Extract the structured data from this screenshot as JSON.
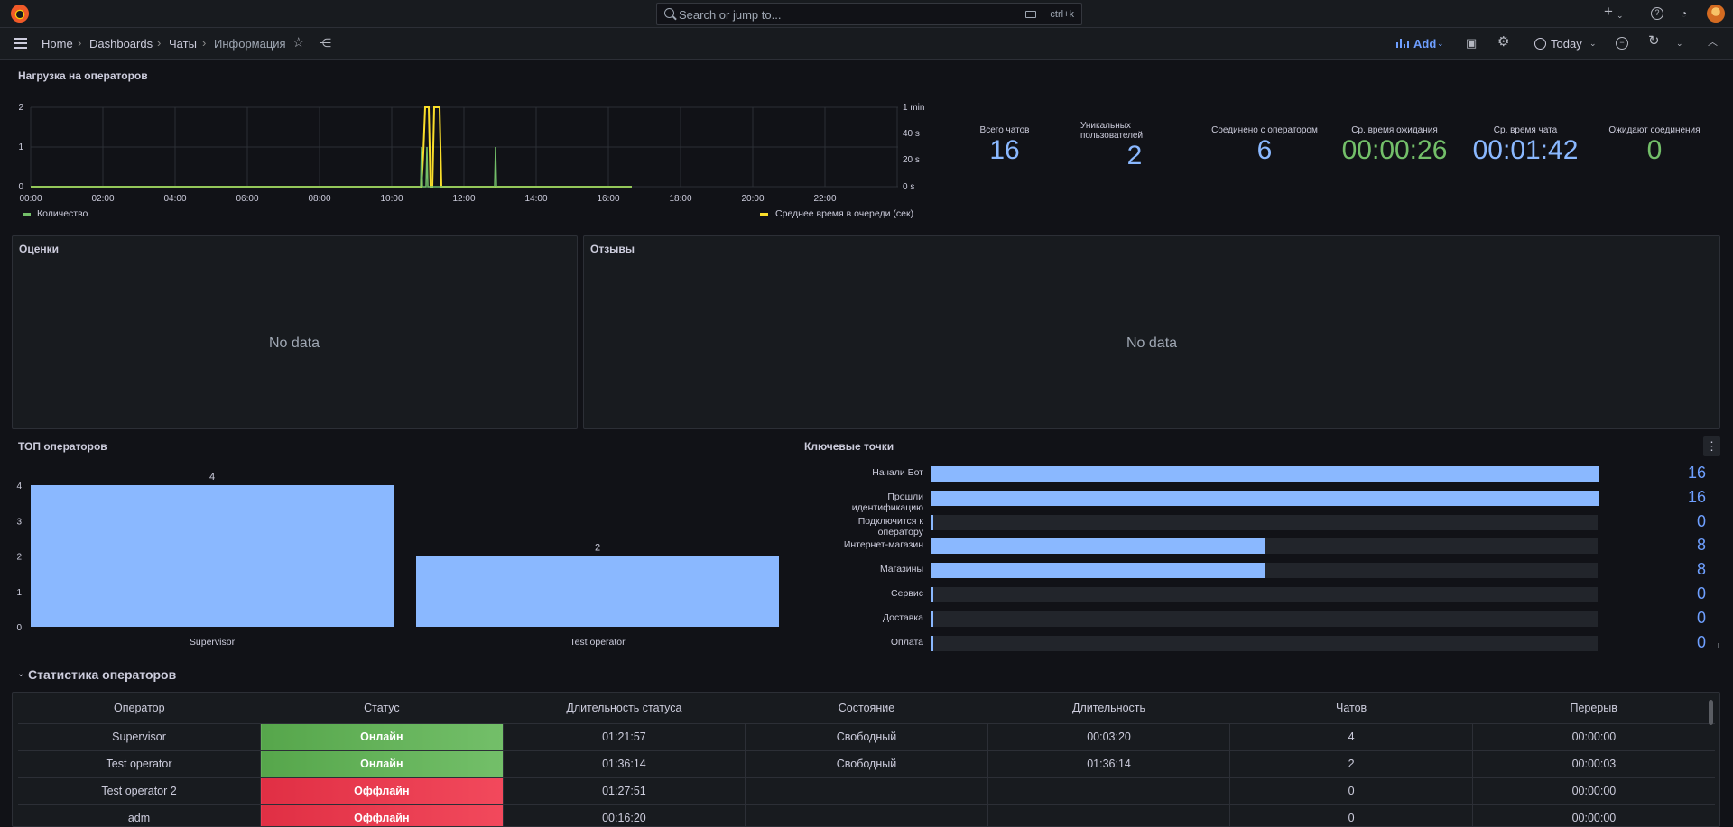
{
  "topbar": {
    "search_placeholder": "Search or jump to...",
    "shortcut": "ctrl+k",
    "plus_label": "+"
  },
  "breadcrumb": {
    "home": "Home",
    "dashboards": "Dashboards",
    "folder": "Чаты",
    "current": "Информация"
  },
  "toolbar": {
    "add_label": "Add",
    "time_range": "Today"
  },
  "load_panel": {
    "title": "Нагрузка на операторов",
    "y_left_ticks": [
      "2",
      "1",
      "0"
    ],
    "y_right_ticks": [
      "1 min",
      "40 s",
      "20 s",
      "0 s"
    ],
    "x_ticks": [
      "00:00",
      "02:00",
      "04:00",
      "06:00",
      "08:00",
      "10:00",
      "12:00",
      "14:00",
      "16:00",
      "18:00",
      "20:00",
      "22:00"
    ],
    "legend_left": "Количество",
    "legend_right": "Среднее время в очереди (сек)",
    "color_count": "#73bf69",
    "color_wait": "#fade2a"
  },
  "stats": [
    {
      "label": "Всего чатов",
      "value": "16",
      "color": "#8ab8ff"
    },
    {
      "label": "Уникальных пользователей",
      "value": "2",
      "color": "#8ab8ff"
    },
    {
      "label": "Соединено с оператором",
      "value": "6",
      "color": "#8ab8ff"
    },
    {
      "label": "Ср. время ожидания",
      "value": "00:00:26",
      "color": "#73bf69"
    },
    {
      "label": "Ср. время чата",
      "value": "00:01:42",
      "color": "#8ab8ff"
    },
    {
      "label": "Ожидают соединения",
      "value": "0",
      "color": "#73bf69"
    }
  ],
  "ratings_panel": {
    "title": "Оценки",
    "empty": "No data"
  },
  "reviews_panel": {
    "title": "Отзывы",
    "empty": "No data"
  },
  "top_operators": {
    "title": "ТОП операторов",
    "y_ticks": [
      "4",
      "3",
      "2",
      "1",
      "0"
    ]
  },
  "chart_data": {
    "type": "bar",
    "categories": [
      "Supervisor",
      "Test operator"
    ],
    "values": [
      4,
      2
    ],
    "title": "ТОП операторов",
    "ylim": [
      0,
      4
    ],
    "bar_color": "#8ab8ff"
  },
  "key_points": {
    "title": "Ключевые точки",
    "max": 16,
    "items": [
      {
        "label": "Начали Бот",
        "value": 16
      },
      {
        "label": "Прошли идентификацию",
        "value": 16
      },
      {
        "label": "Подключится к оператору",
        "value": 0
      },
      {
        "label": "Интернет-магазин",
        "value": 8
      },
      {
        "label": "Магазины",
        "value": 8
      },
      {
        "label": "Сервис",
        "value": 0
      },
      {
        "label": "Доставка",
        "value": 0
      },
      {
        "label": "Оплата",
        "value": 0
      }
    ]
  },
  "operators_section": {
    "title": "Статистика операторов",
    "columns": [
      "Оператор",
      "Статус",
      "Длительность статуса",
      "Состояние",
      "Длительность",
      "Чатов",
      "Перерыв"
    ],
    "rows": [
      [
        "Supervisor",
        "Онлайн",
        "01:21:57",
        "Свободный",
        "00:03:20",
        "4",
        "00:00:00"
      ],
      [
        "Test operator",
        "Онлайн",
        "01:36:14",
        "Свободный",
        "01:36:14",
        "2",
        "00:00:03"
      ],
      [
        "Test operator 2",
        "Оффлайн",
        "01:27:51",
        "",
        "",
        "0",
        "00:00:00"
      ],
      [
        "adm",
        "Оффлайн",
        "00:16:20",
        "",
        "",
        "0",
        "00:00:00"
      ]
    ]
  }
}
